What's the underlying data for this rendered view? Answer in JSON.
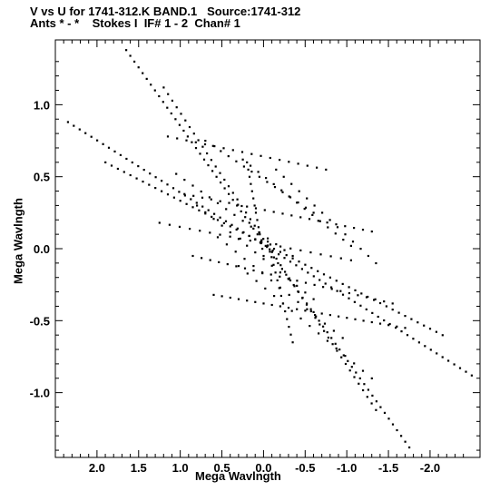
{
  "chart_data": {
    "type": "scatter",
    "title_line1": "V vs U for 1741-312.K BAND.1   Source:1741-312",
    "title_line2": "Ants * - *    Stokes I  IF# 1 - 2  Chan# 1",
    "xlabel": "Mega Wavlngth",
    "ylabel": "Mega Wavlngth",
    "xlim": [
      2.5,
      -2.6
    ],
    "ylim": [
      -1.45,
      1.45
    ],
    "x_ticks": [
      "2.0",
      "1.5",
      "1.0",
      "0.5",
      "0.0",
      "-0.5",
      "-1.0",
      "-1.5",
      "-2.0"
    ],
    "y_ticks": [
      "1.0",
      "0.5",
      "0.0",
      "-0.5",
      "-1.0"
    ],
    "point_color": "#000000",
    "tracks": [
      {
        "from": [
          2.35,
          0.88
        ],
        "to": [
          -2.5,
          -0.88
        ],
        "n": 70
      },
      {
        "from": [
          1.65,
          1.38
        ],
        "to": [
          -1.75,
          -1.38
        ],
        "n": 70
      },
      {
        "from": [
          1.2,
          1.12
        ],
        "to": [
          -1.35,
          -1.12
        ],
        "n": 50
      },
      {
        "from": [
          1.9,
          0.6
        ],
        "to": [
          -2.15,
          -0.6
        ],
        "n": 55
      },
      {
        "from": [
          1.15,
          0.78
        ],
        "to": [
          -0.75,
          0.55
        ],
        "n": 18
      },
      {
        "from": [
          1.25,
          0.18
        ],
        "to": [
          -1.05,
          -0.08
        ],
        "n": 20
      },
      {
        "from": [
          0.95,
          0.38
        ],
        "to": [
          -1.3,
          0.12
        ],
        "n": 22
      },
      {
        "from": [
          0.85,
          -0.05
        ],
        "to": [
          -1.55,
          -0.38
        ],
        "n": 24
      },
      {
        "from": [
          0.6,
          -0.32
        ],
        "to": [
          -1.7,
          -0.55
        ],
        "n": 24
      },
      {
        "from": [
          0.7,
          0.75
        ],
        "to": [
          -0.6,
          0.25
        ],
        "n": 15
      },
      {
        "from": [
          0.25,
          0.62
        ],
        "to": [
          -1.05,
          0.02
        ],
        "n": 15
      },
      {
        "from": [
          1.05,
          0.52
        ],
        "to": [
          -0.35,
          -0.05
        ],
        "n": 15
      },
      {
        "from": [
          0.8,
          0.3
        ],
        "to": [
          -0.6,
          -0.35
        ],
        "n": 15
      },
      {
        "from": [
          0.55,
          0.08
        ],
        "to": [
          -0.95,
          -0.62
        ],
        "n": 15
      },
      {
        "from": [
          0.3,
          -0.12
        ],
        "to": [
          -1.3,
          -0.9
        ],
        "n": 16
      },
      {
        "from": [
          -0.15,
          0.55
        ],
        "to": [
          -1.35,
          -0.1
        ],
        "n": 14
      },
      {
        "from": [
          0.2,
          0.6
        ],
        "to": [
          0.0,
          -0.05
        ],
        "n": 14
      },
      {
        "from": [
          -0.05,
          0.05
        ],
        "to": [
          -0.35,
          -0.65
        ],
        "n": 14
      }
    ]
  }
}
